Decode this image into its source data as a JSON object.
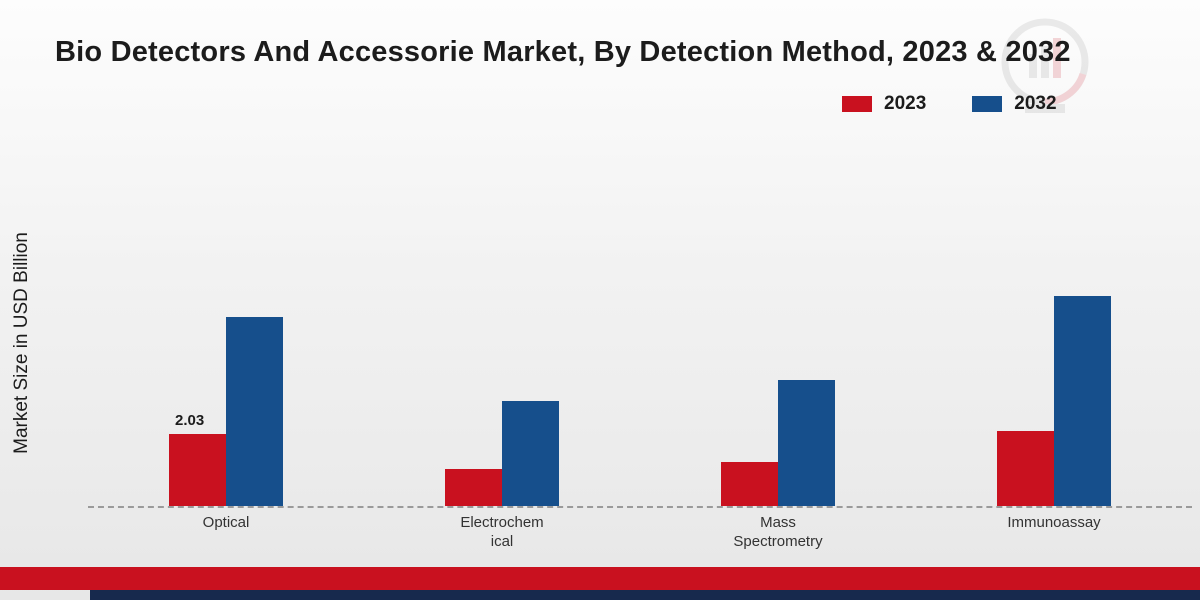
{
  "title": "Bio Detectors And Accessorie Market, By Detection Method, 2023 & 2032",
  "ylabel": "Market Size in USD Billion",
  "legend": [
    {
      "label": "2023",
      "color": "#c9111f"
    },
    {
      "label": "2032",
      "color": "#164f8c"
    }
  ],
  "chart_data": {
    "type": "bar",
    "title": "Bio Detectors And Accessorie Market, By Detection Method, 2023 & 2032",
    "xlabel": "",
    "ylabel": "Market Size in USD Billion",
    "categories": [
      "Optical",
      "Electrochemical",
      "Mass Spectrometry",
      "Immunoassay"
    ],
    "category_display_lines": [
      [
        "Optical"
      ],
      [
        "Electrochem",
        "ical"
      ],
      [
        "Mass",
        "Spectrometry"
      ],
      [
        "Immunoassay"
      ]
    ],
    "series": [
      {
        "name": "2023",
        "color": "#c9111f",
        "values": [
          2.03,
          1.05,
          1.25,
          2.1
        ],
        "value_labels": [
          "2.03",
          "",
          "",
          ""
        ]
      },
      {
        "name": "2032",
        "color": "#164f8c",
        "values": [
          5.3,
          2.95,
          3.55,
          5.9
        ],
        "value_labels": [
          "",
          "",
          "",
          ""
        ]
      }
    ],
    "ylim": [
      0,
      10
    ],
    "grid": false,
    "baseline_style": "dashed",
    "legend_position": "top-right"
  },
  "footer": {
    "red_band_color": "#c9111f",
    "navy_band_color": "#17294d"
  },
  "watermark": {
    "name": "market-research-logo"
  }
}
